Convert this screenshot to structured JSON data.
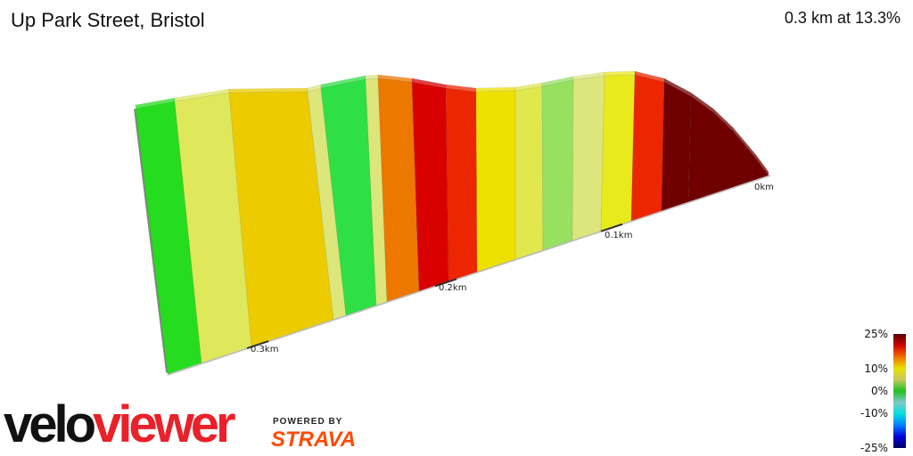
{
  "header": {
    "title": "Up Park Street, Bristol",
    "summary": "0.3 km at 13.3%"
  },
  "chart_data": {
    "type": "area",
    "style": "3d elevation profile, segments coloured by gradient",
    "x_direction": "distance decreasing left to right",
    "x_ticks": [
      "0km",
      "0.1km",
      "0.2km",
      "0.3km"
    ],
    "segment_colors": [
      "#25dd1e",
      "#dfe85a",
      "#eccc00",
      "#dde67a",
      "#2ee045",
      "#dde67a",
      "#ec7800",
      "#d90000",
      "#ec2600",
      "#eee000",
      "#e0e84e",
      "#98e060",
      "#dce67c",
      "#e8ea1c",
      "#ec2600",
      "#700000",
      "#700000",
      "#700000",
      "#700000",
      "#700000"
    ],
    "legend": {
      "labels": [
        "25%",
        "10%",
        "0%",
        "-10%",
        "-25%"
      ],
      "placement": "bottom-right",
      "colors": [
        "#5a0000",
        "#d00000",
        "#f07000",
        "#e8e000",
        "#c8c860",
        "#22c022",
        "#80c8c8",
        "#00e0e0",
        "#0080ff",
        "#0000e0",
        "#000060"
      ]
    }
  },
  "branding": {
    "logo_part1": "velo",
    "logo_part2": "viewer",
    "powered_by": "POWERED BY",
    "strava": "STRAVA"
  }
}
